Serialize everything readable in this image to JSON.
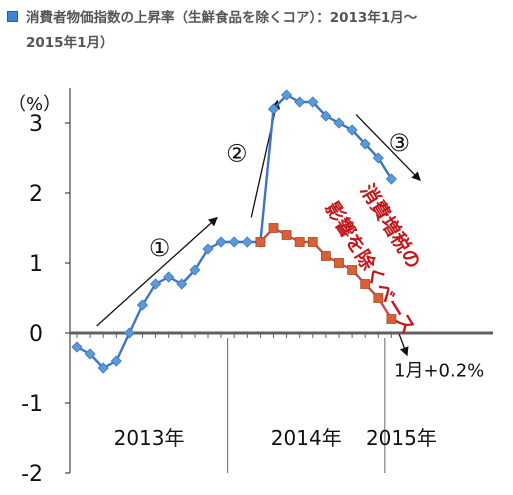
{
  "header": {
    "title_line1": "消費者物価指数の上昇率（生鮮食品を除くコア）：2013年1月～",
    "title_line2": "2015年1月）"
  },
  "chart_data": {
    "type": "line",
    "ylabel": "（%）",
    "ylim": [
      -2,
      3.5
    ],
    "yticks": [
      -2,
      -1,
      0,
      1,
      2,
      3
    ],
    "ytick_labels": [
      "-2",
      "-1",
      "0",
      "1",
      "2",
      "3"
    ],
    "grid": false,
    "x": [
      "2013-01",
      "2013-02",
      "2013-03",
      "2013-04",
      "2013-05",
      "2013-06",
      "2013-07",
      "2013-08",
      "2013-09",
      "2013-10",
      "2013-11",
      "2013-12",
      "2014-01",
      "2014-02",
      "2014-03",
      "2014-04",
      "2014-05",
      "2014-06",
      "2014-07",
      "2014-08",
      "2014-09",
      "2014-10",
      "2014-11",
      "2014-12",
      "2015-01"
    ],
    "year_labels": [
      "2013年",
      "2014年",
      "2015年"
    ],
    "series": [
      {
        "color": "#3d74c4",
        "marker": "diamond",
        "values": [
          -0.2,
          -0.3,
          -0.5,
          -0.4,
          0.0,
          0.4,
          0.7,
          0.8,
          0.7,
          0.9,
          1.2,
          1.3,
          1.3,
          1.3,
          1.3,
          3.2,
          3.4,
          3.3,
          3.3,
          3.1,
          3.0,
          2.9,
          2.7,
          2.5,
          2.2
        ]
      },
      {
        "color": "#c0504d",
        "marker": "square",
        "values": [
          null,
          null,
          null,
          null,
          null,
          null,
          null,
          null,
          null,
          null,
          null,
          null,
          null,
          null,
          1.3,
          1.5,
          1.4,
          1.3,
          1.3,
          1.1,
          1.0,
          0.9,
          0.7,
          0.5,
          0.2
        ]
      }
    ],
    "annotations": {
      "phase1": "①",
      "phase2": "②",
      "phase3": "③",
      "tax_line1": "消費増税の",
      "tax_line2": "影響を除くベース",
      "final_value": "1月+0.2%"
    }
  }
}
